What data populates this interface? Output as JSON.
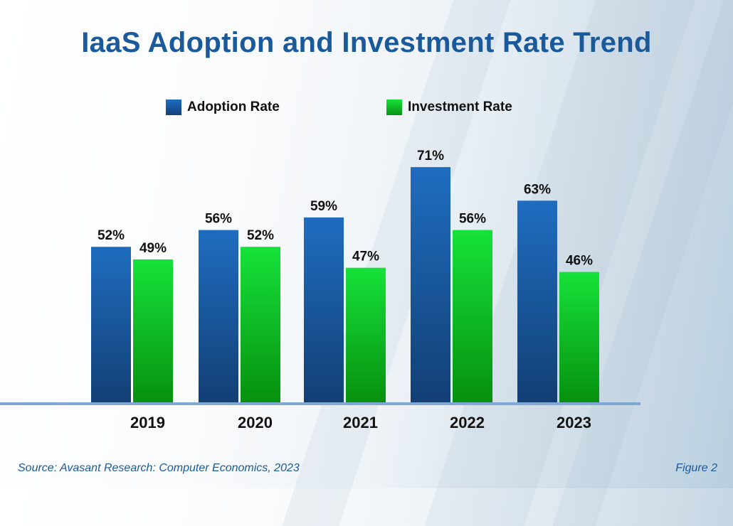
{
  "chart_data": {
    "type": "bar",
    "title": "IaaS Adoption and Investment Rate Trend",
    "categories": [
      "2019",
      "2020",
      "2021",
      "2022",
      "2023"
    ],
    "series": [
      {
        "name": "Adoption Rate",
        "color": "#1a5fae",
        "values": [
          52,
          56,
          59,
          71,
          63
        ]
      },
      {
        "name": "Investment Rate",
        "color": "#12c934",
        "values": [
          49,
          52,
          47,
          56,
          46
        ]
      }
    ],
    "value_suffix": "%",
    "xlabel": "",
    "ylabel": "",
    "grid": false,
    "legend": "top-center"
  },
  "footer": {
    "source": "Source: Avasant Research: Computer Economics, 2023",
    "figure": "Figure 2"
  }
}
